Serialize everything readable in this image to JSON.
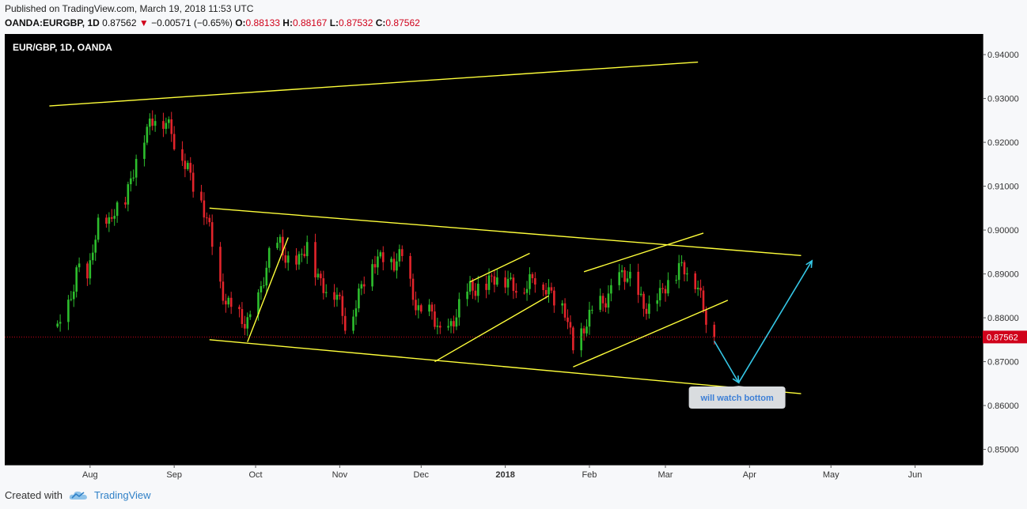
{
  "header": {
    "published": "Published on TradingView.com, March 19, 2018 11:53 UTC",
    "symbol": "OANDA:EURGBP, 1D",
    "last": "0.87562",
    "change": "−0.00571 (−0.65%)",
    "o_label": "O:",
    "o_value": "0.88133",
    "h_label": "H:",
    "h_value": "0.88167",
    "l_label": "L:",
    "l_value": "0.87532",
    "c_label": "C:",
    "c_value": "0.87562"
  },
  "chart_label": "EUR/GBP, 1D, OANDA",
  "footer": {
    "created_with": "Created with",
    "brand": "TradingView",
    "icon": "tradingview-cloud-icon"
  },
  "annotation": {
    "text": "will watch bottom"
  },
  "last_price_tag": "0.87562",
  "colors": {
    "background": "#000000",
    "up": "#2dbe2d",
    "down": "#e3242b",
    "trendline": "#ffff3a",
    "arrow": "#35c7e6",
    "price_line": "#d0021b"
  },
  "chart_data": {
    "type": "candlestick",
    "title": "EUR/GBP, 1D, OANDA",
    "x_tick_labels": [
      "Aug",
      "Sep",
      "Oct",
      "Nov",
      "Dec",
      "2018",
      "Feb",
      "Mar",
      "Apr",
      "May",
      "Jun"
    ],
    "y_tick_labels": [
      "0.94000",
      "0.93000",
      "0.92000",
      "0.91000",
      "0.90000",
      "0.89000",
      "0.88000",
      "0.87000",
      "0.86000",
      "0.85000"
    ],
    "ylim": [
      0.8465,
      0.9447
    ],
    "grid": false,
    "last_price": 0.87562,
    "price_path": [
      [
        "2017-07-20",
        0.878
      ],
      [
        "2017-07-25",
        0.884
      ],
      [
        "2017-07-27",
        0.89
      ],
      [
        "2017-07-31",
        0.888
      ],
      [
        "2017-08-02",
        0.8975
      ],
      [
        "2017-08-04",
        0.902
      ],
      [
        "2017-08-08",
        0.9
      ],
      [
        "2017-08-10",
        0.904
      ],
      [
        "2017-08-14",
        0.908
      ],
      [
        "2017-08-18",
        0.916
      ],
      [
        "2017-08-22",
        0.922
      ],
      [
        "2017-08-25",
        0.927
      ],
      [
        "2017-08-29",
        0.925
      ],
      [
        "2017-09-01",
        0.919
      ],
      [
        "2017-09-06",
        0.915
      ],
      [
        "2017-09-11",
        0.906
      ],
      [
        "2017-09-14",
        0.899
      ],
      [
        "2017-09-18",
        0.888
      ],
      [
        "2017-09-22",
        0.882
      ],
      [
        "2017-09-26",
        0.878
      ],
      [
        "2017-09-29",
        0.88
      ],
      [
        "2017-10-03",
        0.887
      ],
      [
        "2017-10-06",
        0.893
      ],
      [
        "2017-10-10",
        0.897
      ],
      [
        "2017-10-13",
        0.894
      ],
      [
        "2017-10-17",
        0.892
      ],
      [
        "2017-10-20",
        0.896
      ],
      [
        "2017-10-24",
        0.89
      ],
      [
        "2017-10-27",
        0.887
      ],
      [
        "2017-10-31",
        0.884
      ],
      [
        "2017-11-03",
        0.879
      ],
      [
        "2017-11-07",
        0.884
      ],
      [
        "2017-11-10",
        0.888
      ],
      [
        "2017-11-14",
        0.893
      ],
      [
        "2017-11-17",
        0.895
      ],
      [
        "2017-11-21",
        0.892
      ],
      [
        "2017-11-24",
        0.893
      ],
      [
        "2017-11-28",
        0.886
      ],
      [
        "2017-12-01",
        0.881
      ],
      [
        "2017-12-05",
        0.88
      ],
      [
        "2017-12-08",
        0.876
      ],
      [
        "2017-12-12",
        0.879
      ],
      [
        "2017-12-15",
        0.882
      ],
      [
        "2017-12-19",
        0.886
      ],
      [
        "2017-12-22",
        0.888
      ],
      [
        "2017-12-27",
        0.888
      ],
      [
        "2018-01-02",
        0.889
      ],
      [
        "2018-01-05",
        0.888
      ],
      [
        "2018-01-09",
        0.886
      ],
      [
        "2018-01-12",
        0.889
      ],
      [
        "2018-01-16",
        0.888
      ],
      [
        "2018-01-19",
        0.884
      ],
      [
        "2018-01-23",
        0.881
      ],
      [
        "2018-01-26",
        0.874
      ],
      [
        "2018-01-30",
        0.878
      ],
      [
        "2018-02-02",
        0.88
      ],
      [
        "2018-02-06",
        0.884
      ],
      [
        "2018-02-09",
        0.887
      ],
      [
        "2018-02-13",
        0.889
      ],
      [
        "2018-02-16",
        0.888
      ],
      [
        "2018-02-20",
        0.885
      ],
      [
        "2018-02-23",
        0.882
      ],
      [
        "2018-02-27",
        0.884
      ],
      [
        "2018-03-02",
        0.889
      ],
      [
        "2018-03-06",
        0.892
      ],
      [
        "2018-03-09",
        0.89
      ],
      [
        "2018-03-13",
        0.887
      ],
      [
        "2018-03-16",
        0.8813
      ],
      [
        "2018-03-19",
        0.87562
      ]
    ],
    "trendlines": [
      {
        "name": "upper-channel-top",
        "from": [
          "2017-07-17",
          0.9283
        ],
        "to": [
          "2018-03-13",
          0.9383
        ]
      },
      {
        "name": "descending-channel-top",
        "from": [
          "2017-09-14",
          0.905
        ],
        "to": [
          "2018-04-20",
          0.8942
        ]
      },
      {
        "name": "descending-channel-bottom",
        "from": [
          "2017-09-14",
          0.875
        ],
        "to": [
          "2018-04-20",
          0.8627
        ]
      },
      {
        "name": "oct-rally-line",
        "from": [
          "2017-09-28",
          0.8745
        ],
        "to": [
          "2017-10-13",
          0.8983
        ]
      },
      {
        "name": "dec-wedge-top",
        "from": [
          "2017-12-19",
          0.8882
        ],
        "to": [
          "2018-01-10",
          0.8947
        ]
      },
      {
        "name": "dec-wedge-bottom",
        "from": [
          "2017-12-06",
          0.87
        ],
        "to": [
          "2018-01-17",
          0.885
        ]
      },
      {
        "name": "feb-wedge-top",
        "from": [
          "2018-01-30",
          0.8905
        ],
        "to": [
          "2018-03-15",
          0.8993
        ]
      },
      {
        "name": "feb-wedge-bottom",
        "from": [
          "2018-01-26",
          0.8688
        ],
        "to": [
          "2018-03-24",
          0.884
        ]
      }
    ],
    "arrows": [
      {
        "from": [
          "2018-03-19",
          0.8747
        ],
        "to": [
          "2018-03-28",
          0.8652
        ]
      },
      {
        "from": [
          "2018-03-28",
          0.8652
        ],
        "to": [
          "2018-04-24",
          0.893
        ]
      }
    ]
  }
}
